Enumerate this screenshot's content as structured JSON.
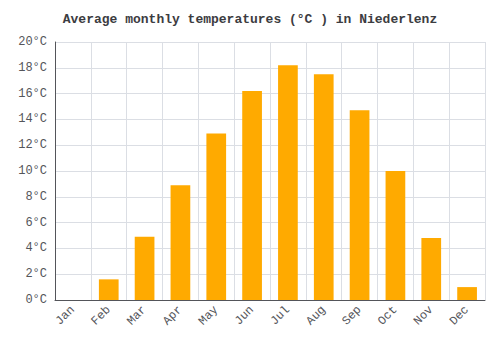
{
  "chart_data": {
    "type": "bar",
    "title": "Average monthly temperatures (°C ) in Niederlenz",
    "categories": [
      "Jan",
      "Feb",
      "Mar",
      "Apr",
      "May",
      "Jun",
      "Jul",
      "Aug",
      "Sep",
      "Oct",
      "Nov",
      "Dec"
    ],
    "values": [
      0.0,
      1.6,
      4.9,
      8.9,
      12.9,
      16.2,
      18.2,
      17.5,
      14.7,
      10.0,
      4.8,
      1.0
    ],
    "color": "#FFAA00",
    "ylim": [
      0,
      20
    ],
    "yticks": [
      {
        "value": 0,
        "label": "0°C"
      },
      {
        "value": 2,
        "label": "2°C"
      },
      {
        "value": 4,
        "label": "4°C"
      },
      {
        "value": 6,
        "label": "6°C"
      },
      {
        "value": 8,
        "label": "8°C"
      },
      {
        "value": 10,
        "label": "10°C"
      },
      {
        "value": 12,
        "label": "12°C"
      },
      {
        "value": 14,
        "label": "14°C"
      },
      {
        "value": 16,
        "label": "16°C"
      },
      {
        "value": 18,
        "label": "18°C"
      },
      {
        "value": 20,
        "label": "20°C"
      }
    ],
    "grid": true
  }
}
